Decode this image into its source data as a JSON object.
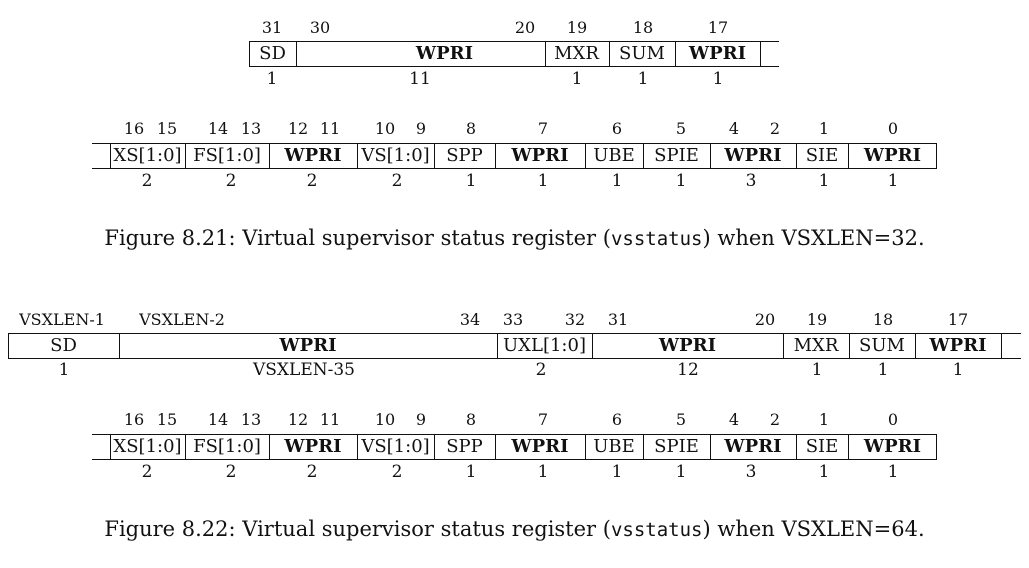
{
  "fig1": {
    "row1": {
      "bit_labels": [
        "31",
        "30",
        "20",
        "19",
        "18",
        "17"
      ],
      "fields": [
        {
          "name": "SD",
          "bold": false,
          "width": "1"
        },
        {
          "name": "WPRI",
          "bold": true,
          "width": "11"
        },
        {
          "name": "MXR",
          "bold": false,
          "width": "1"
        },
        {
          "name": "SUM",
          "bold": false,
          "width": "1"
        },
        {
          "name": "WPRI",
          "bold": true,
          "width": "1"
        }
      ]
    },
    "row2": {
      "bit_labels": [
        "16",
        "15",
        "14",
        "13",
        "12",
        "11",
        "10",
        "9",
        "8",
        "7",
        "6",
        "5",
        "4",
        "2",
        "1",
        "0"
      ],
      "fields": [
        {
          "name": "XS[1:0]",
          "bold": false,
          "width": "2"
        },
        {
          "name": "FS[1:0]",
          "bold": false,
          "width": "2"
        },
        {
          "name": "WPRI",
          "bold": true,
          "width": "2"
        },
        {
          "name": "VS[1:0]",
          "bold": false,
          "width": "2"
        },
        {
          "name": "SPP",
          "bold": false,
          "width": "1"
        },
        {
          "name": "WPRI",
          "bold": true,
          "width": "1"
        },
        {
          "name": "UBE",
          "bold": false,
          "width": "1"
        },
        {
          "name": "SPIE",
          "bold": false,
          "width": "1"
        },
        {
          "name": "WPRI",
          "bold": true,
          "width": "3"
        },
        {
          "name": "SIE",
          "bold": false,
          "width": "1"
        },
        {
          "name": "WPRI",
          "bold": true,
          "width": "1"
        }
      ]
    },
    "caption_prefix": "Figure 8.21: Virtual supervisor status register (",
    "caption_code": "vsstatus",
    "caption_suffix": ") when VSXLEN=32."
  },
  "fig2": {
    "row1": {
      "bit_labels": [
        "VSXLEN-1",
        "VSXLEN-2",
        "34",
        "33",
        "32",
        "31",
        "20",
        "19",
        "18",
        "17"
      ],
      "fields": [
        {
          "name": "SD",
          "bold": false,
          "width": "1"
        },
        {
          "name": "WPRI",
          "bold": true,
          "width": "VSXLEN-35"
        },
        {
          "name": "UXL[1:0]",
          "bold": false,
          "width": "2"
        },
        {
          "name": "WPRI",
          "bold": true,
          "width": "12"
        },
        {
          "name": "MXR",
          "bold": false,
          "width": "1"
        },
        {
          "name": "SUM",
          "bold": false,
          "width": "1"
        },
        {
          "name": "WPRI",
          "bold": true,
          "width": "1"
        }
      ]
    },
    "row2": {
      "bit_labels": [
        "16",
        "15",
        "14",
        "13",
        "12",
        "11",
        "10",
        "9",
        "8",
        "7",
        "6",
        "5",
        "4",
        "2",
        "1",
        "0"
      ],
      "fields": [
        {
          "name": "XS[1:0]",
          "bold": false,
          "width": "2"
        },
        {
          "name": "FS[1:0]",
          "bold": false,
          "width": "2"
        },
        {
          "name": "WPRI",
          "bold": true,
          "width": "2"
        },
        {
          "name": "VS[1:0]",
          "bold": false,
          "width": "2"
        },
        {
          "name": "SPP",
          "bold": false,
          "width": "1"
        },
        {
          "name": "WPRI",
          "bold": true,
          "width": "1"
        },
        {
          "name": "UBE",
          "bold": false,
          "width": "1"
        },
        {
          "name": "SPIE",
          "bold": false,
          "width": "1"
        },
        {
          "name": "WPRI",
          "bold": true,
          "width": "3"
        },
        {
          "name": "SIE",
          "bold": false,
          "width": "1"
        },
        {
          "name": "WPRI",
          "bold": true,
          "width": "1"
        }
      ]
    },
    "caption_prefix": "Figure 8.22: Virtual supervisor status register (",
    "caption_code": "vsstatus",
    "caption_suffix": ") when VSXLEN=64."
  }
}
